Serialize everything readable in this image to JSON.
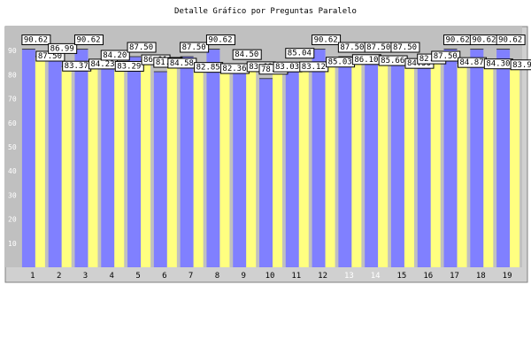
{
  "chart_data": {
    "type": "bar",
    "title": "Detalle Gráfico por Preguntas Paralelo",
    "xlabel": "",
    "ylabel": "",
    "ylim": [
      0,
      100
    ],
    "yticks": [
      10,
      20,
      30,
      40,
      50,
      60,
      70,
      80,
      90
    ],
    "grid": false,
    "categories": [
      "1",
      "2",
      "3",
      "4",
      "5",
      "6",
      "7",
      "8",
      "9",
      "10",
      "11",
      "12",
      "13",
      "14",
      "15",
      "16",
      "17",
      "18",
      "19"
    ],
    "series": [
      {
        "color": "#8080ff",
        "values": [
          90.62,
          86.99,
          90.62,
          84.2,
          87.5,
          81.25,
          87.5,
          90.62,
          84.5,
          78.4,
          85.04,
          90.62,
          87.5,
          87.5,
          87.5,
          82.69,
          90.62,
          90.62,
          90.62
        ]
      },
      {
        "color": "#ffff80",
        "values": [
          87.5,
          83.37,
          84.23,
          83.29,
          86.01,
          84.58,
          82.85,
          82.36,
          83.12,
          83.03,
          83.12,
          85.03,
          86.1,
          85.66,
          84.5,
          87.5,
          84.87,
          84.3,
          83.91
        ]
      }
    ],
    "colors": {
      "plot_background": "#c0c0c0",
      "frame_background": "#d0d0d0",
      "grid_background": "#b4b4b4",
      "label_box": "#ffffff"
    }
  }
}
